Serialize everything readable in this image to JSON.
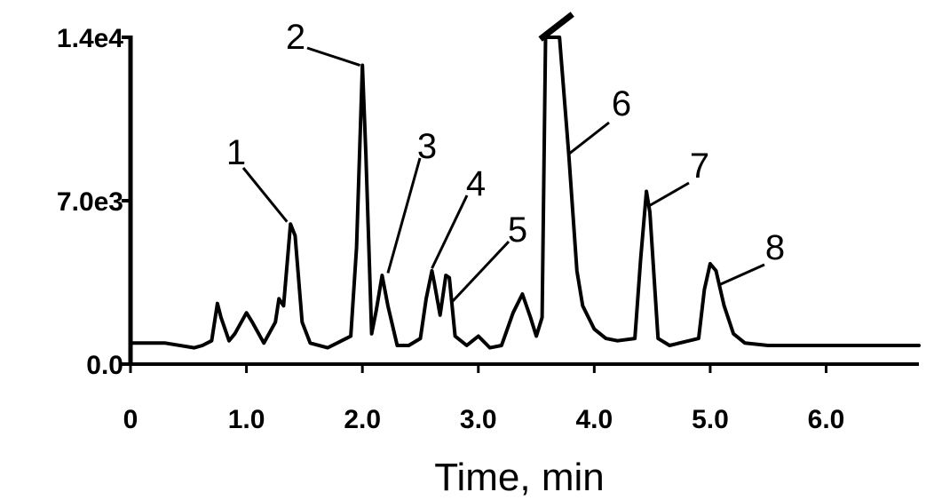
{
  "chart_data": {
    "type": "line",
    "title": "",
    "xlabel": "Time, min",
    "ylabel": "",
    "xlim": [
      0,
      6.8
    ],
    "ylim": [
      0,
      14000
    ],
    "x_ticks": [
      {
        "value": 0,
        "label": "0"
      },
      {
        "value": 1,
        "label": "1.0"
      },
      {
        "value": 2,
        "label": "2.0"
      },
      {
        "value": 3,
        "label": "3.0"
      },
      {
        "value": 4,
        "label": "4.0"
      },
      {
        "value": 5,
        "label": "5.0"
      },
      {
        "value": 6,
        "label": "6.0"
      }
    ],
    "y_ticks": [
      {
        "value": 0,
        "label": "0.0"
      },
      {
        "value": 7000,
        "label": "7.0e3"
      },
      {
        "value": 14000,
        "label": "1.4e4"
      }
    ],
    "grid": false,
    "series": [
      {
        "x": [
          0.0,
          0.3,
          0.55,
          0.62,
          0.7,
          0.75,
          0.78,
          0.85,
          0.9,
          1.0,
          1.05,
          1.15,
          1.25,
          1.28,
          1.32,
          1.38,
          1.42,
          1.48,
          1.55,
          1.7,
          1.9,
          1.95,
          2.0,
          2.03,
          2.08,
          2.12,
          2.17,
          2.22,
          2.3,
          2.4,
          2.5,
          2.55,
          2.6,
          2.62,
          2.67,
          2.72,
          2.75,
          2.8,
          2.9,
          3.0,
          3.1,
          3.2,
          3.3,
          3.38,
          3.45,
          3.5,
          3.55,
          3.58,
          3.62,
          3.65,
          3.7,
          3.78,
          3.85,
          3.9,
          4.0,
          4.1,
          4.2,
          4.35,
          4.4,
          4.45,
          4.48,
          4.55,
          4.65,
          4.9,
          4.95,
          5.0,
          5.05,
          5.12,
          5.2,
          5.3,
          5.5,
          6.0,
          6.5,
          6.8
        ],
        "y": [
          900,
          900,
          700,
          800,
          1000,
          2600,
          2000,
          1000,
          1300,
          2200,
          1800,
          900,
          1800,
          2800,
          2500,
          6000,
          5500,
          1800,
          900,
          700,
          1200,
          5000,
          12800,
          9000,
          1300,
          2300,
          3800,
          2500,
          800,
          800,
          1100,
          2800,
          4000,
          3500,
          2100,
          3800,
          3700,
          1200,
          800,
          1200,
          700,
          800,
          2200,
          3000,
          2000,
          1200,
          2000,
          14000,
          14000,
          14000,
          14000,
          9000,
          4000,
          2500,
          1500,
          1100,
          1000,
          1100,
          4500,
          7400,
          6500,
          1100,
          800,
          1100,
          3200,
          4300,
          4000,
          2500,
          1300,
          900,
          800,
          800,
          800,
          800
        ]
      }
    ],
    "annotations": [
      {
        "text": "1",
        "x": 1.35,
        "y": 6100
      },
      {
        "text": "2",
        "x": 1.98,
        "y": 12800
      },
      {
        "text": "3",
        "x": 2.22,
        "y": 3900
      },
      {
        "text": "4",
        "x": 2.6,
        "y": 4100
      },
      {
        "text": "5",
        "x": 2.78,
        "y": 2700
      },
      {
        "text": "6",
        "x": 3.78,
        "y": 9000
      },
      {
        "text": "7",
        "x": 4.48,
        "y": 6800
      },
      {
        "text": "8",
        "x": 5.08,
        "y": 3400
      }
    ]
  }
}
